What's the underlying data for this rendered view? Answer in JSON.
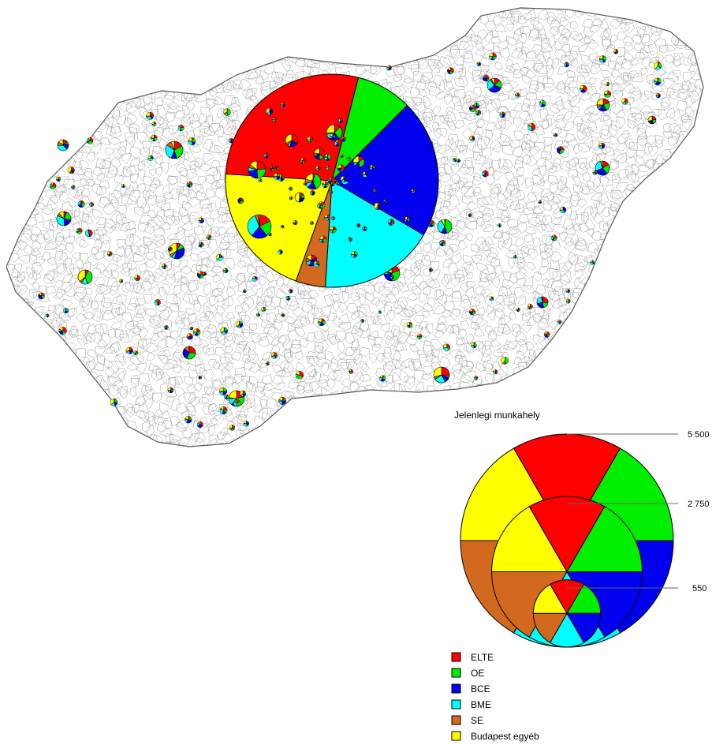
{
  "map": {
    "title": "Jelenlegi munkahely",
    "region": "Hungary",
    "categories": [
      {
        "label": "ELTE",
        "color": "#ff0000"
      },
      {
        "label": "OE",
        "color": "#00ee00"
      },
      {
        "label": "BCE",
        "color": "#0000ee"
      },
      {
        "label": "BME",
        "color": "#00ffff"
      },
      {
        "label": "SE",
        "color": "#d2691e"
      },
      {
        "label": "Budapest egyéb",
        "color": "#ffff00"
      }
    ],
    "size_reference": {
      "values": [
        5500,
        2750,
        550
      ],
      "labels": [
        "5 500",
        "2 750",
        "550"
      ]
    },
    "main_pie_shares": [
      0.29,
      0.085,
      0.21,
      0.175,
      0.045,
      0.205
    ]
  }
}
